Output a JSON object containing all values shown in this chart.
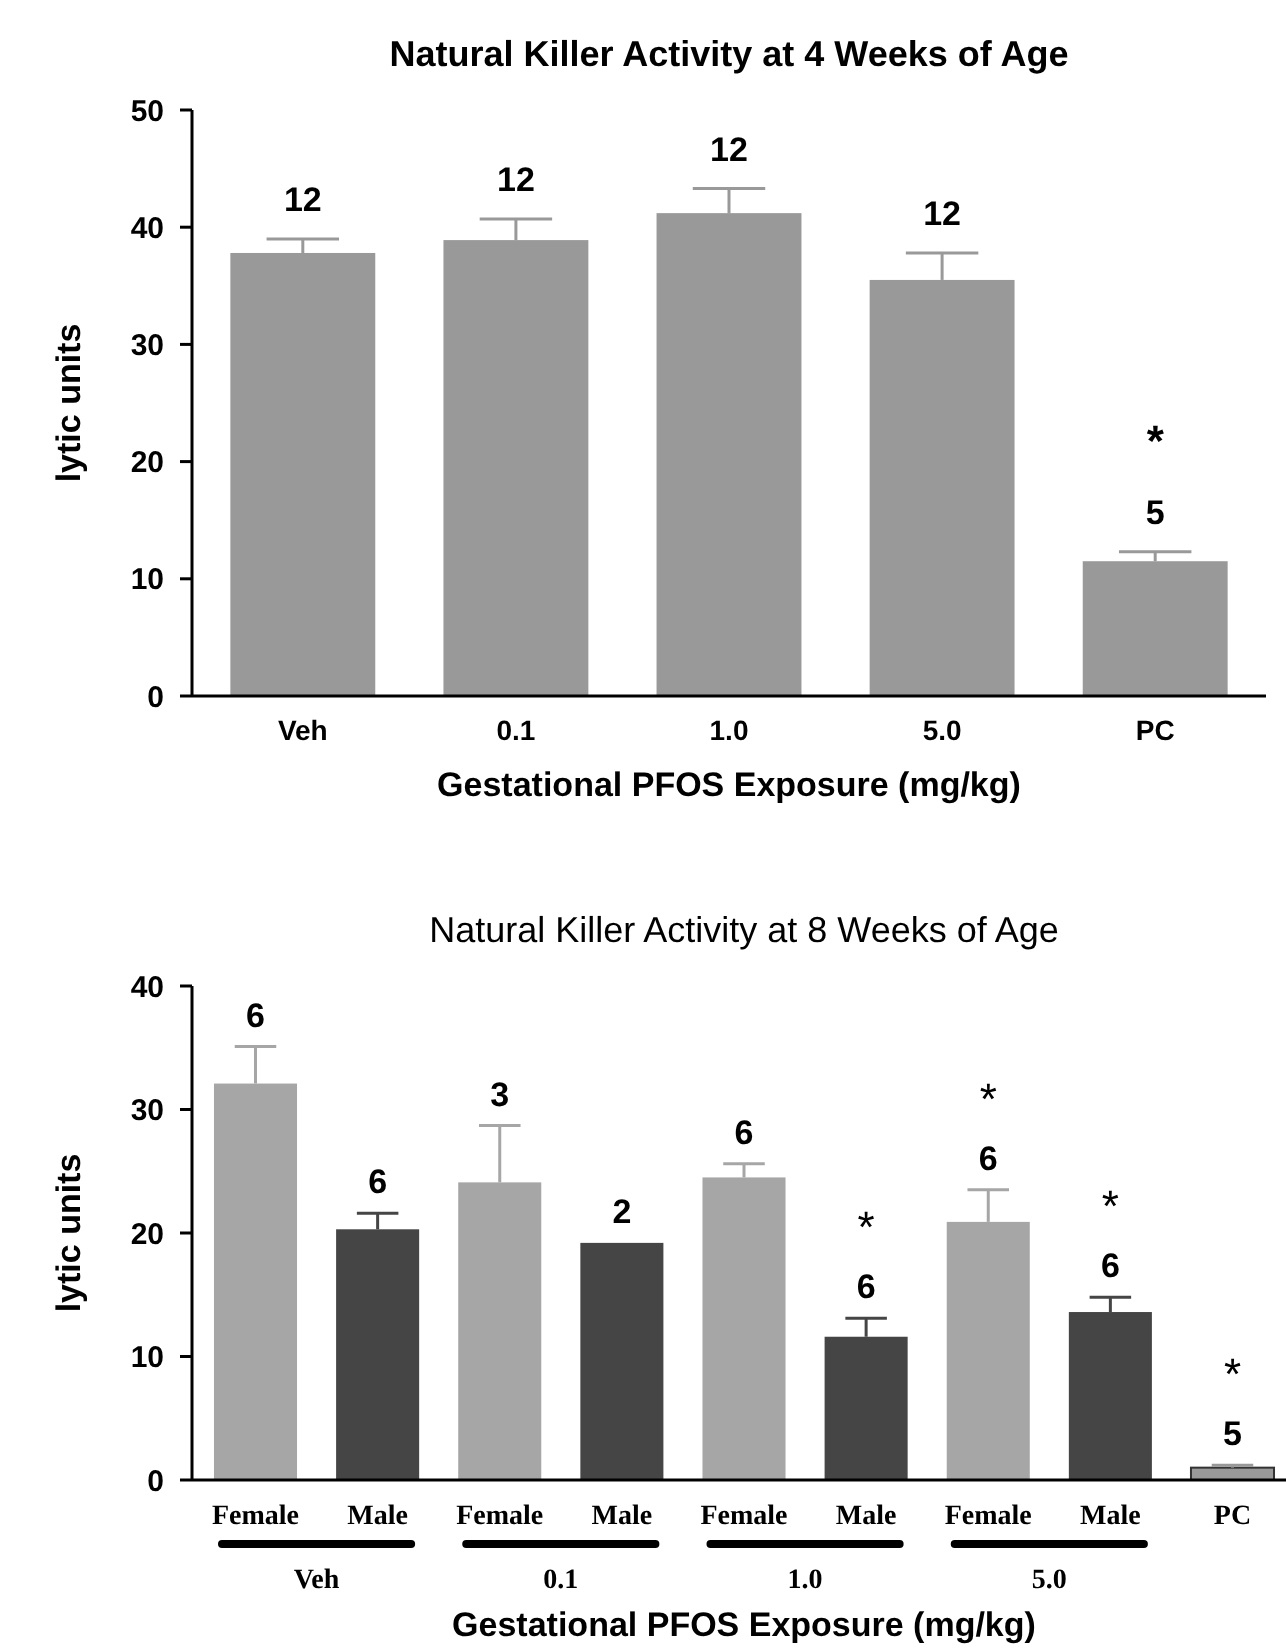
{
  "chart_data": [
    {
      "type": "bar",
      "title": "Natural Killer Activity at 4 Weeks of Age",
      "xlabel": "Gestational PFOS Exposure (mg/kg)",
      "ylabel": "lytic units",
      "categories": [
        "Veh",
        "0.1",
        "1.0",
        "5.0",
        "PC"
      ],
      "values": [
        37.8,
        38.9,
        41.2,
        35.5,
        11.5
      ],
      "errors": [
        [
          37.8,
          39.0
        ],
        [
          38.9,
          40.7
        ],
        [
          41.2,
          43.3
        ],
        [
          35.5,
          37.8
        ],
        [
          11.5,
          12.3
        ]
      ],
      "colors": [
        "#999999",
        "#999999",
        "#999999",
        "#999999",
        "#999999"
      ],
      "ylim": [
        0,
        50
      ],
      "yticks": [
        0,
        10,
        20,
        30,
        40,
        50
      ],
      "grid": false,
      "annotations": [
        "12",
        "12",
        "12",
        "12",
        "5",
        "*"
      ]
    },
    {
      "type": "bar",
      "title": "Natural Killer Activity at 8 Weeks of Age",
      "xlabel": "Gestational PFOS Exposure (mg/kg)",
      "ylabel": "lytic units",
      "categories": [
        "Female",
        "Male",
        "Female",
        "Male",
        "Female",
        "Male",
        "Female",
        "Male",
        "PC"
      ],
      "values": [
        32.1,
        20.3,
        24.1,
        19.2,
        24.5,
        11.6,
        20.9,
        13.6,
        1.0
      ],
      "errors": [
        [
          32.1,
          35.1
        ],
        [
          20.3,
          21.6
        ],
        [
          24.1,
          28.7
        ],
        null,
        [
          24.5,
          25.6
        ],
        [
          11.6,
          13.1
        ],
        [
          20.9,
          23.5
        ],
        [
          13.6,
          14.8
        ],
        [
          1.0,
          1.2
        ]
      ],
      "colors": [
        "#a6a6a6",
        "#454545",
        "#a6a6a6",
        "#454545",
        "#a6a6a6",
        "#454545",
        "#a6a6a6",
        "#454545",
        "#999999"
      ],
      "ylim": [
        0,
        40
      ],
      "yticks": [
        0,
        10,
        20,
        30,
        40
      ],
      "grid": false,
      "annotations": [
        "Veh",
        "0.1",
        "1.0",
        "5.0",
        "6",
        "6",
        "3",
        "2",
        "6",
        "6",
        "*",
        "6",
        "*",
        "6",
        "*",
        "5",
        "*"
      ]
    }
  ]
}
